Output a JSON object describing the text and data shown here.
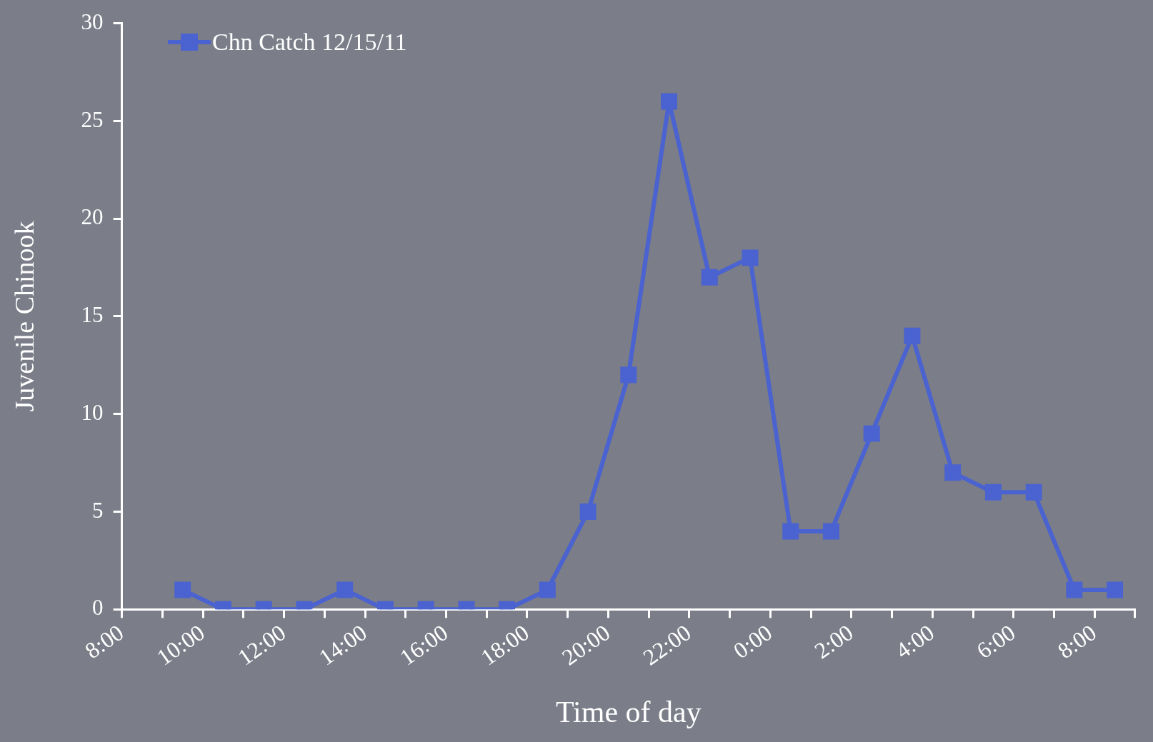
{
  "chart_data": {
    "type": "line",
    "xlabel": "Time of day",
    "ylabel": "Juvenile Chinook",
    "x": [
      "--12-15T09:30",
      "--12-15T10:30",
      "--12-15T11:30",
      "--12-15T12:30",
      "--12-15T13:30",
      "--12-15T14:30",
      "--12-15T15:30",
      "--12-15T16:30",
      "--12-15T17:30",
      "--12-15T18:30",
      "--12-15T19:30",
      "--12-15T20:30",
      "--12-15T21:30",
      "--12-15T22:30",
      "--12-15T23:30",
      "--12-16T00:30",
      "--12-16T01:30",
      "--12-16T02:30",
      "--12-16T03:30",
      "--12-16T04:30",
      "--12-16T05:30",
      "--12-16T06:30",
      "--12-16T07:30",
      "--12-16T08:30"
    ],
    "series": [
      {
        "name": "Chn Catch 12/15/11",
        "color": "#4a63d0",
        "values": [
          1,
          0,
          0,
          0,
          1,
          0,
          0,
          0,
          0,
          1,
          5,
          12,
          26,
          17,
          18,
          4,
          4,
          9,
          14,
          7,
          6,
          6,
          1,
          1
        ]
      }
    ],
    "xlim": [
      "--12-15T08:00",
      "--12-16T09:00"
    ],
    "xticks": [
      {
        "value": "--12-15T08:00",
        "label": "8:00"
      },
      {
        "value": "--12-15T09:00",
        "label": null
      },
      {
        "value": "--12-15T10:00",
        "label": "10:00"
      },
      {
        "value": "--12-15T11:00",
        "label": null
      },
      {
        "value": "--12-15T12:00",
        "label": "12:00"
      },
      {
        "value": "--12-15T13:00",
        "label": null
      },
      {
        "value": "--12-15T14:00",
        "label": "14:00"
      },
      {
        "value": "--12-15T15:00",
        "label": null
      },
      {
        "value": "--12-15T16:00",
        "label": "16:00"
      },
      {
        "value": "--12-15T17:00",
        "label": null
      },
      {
        "value": "--12-15T18:00",
        "label": "18:00"
      },
      {
        "value": "--12-15T19:00",
        "label": null
      },
      {
        "value": "--12-15T20:00",
        "label": "20:00"
      },
      {
        "value": "--12-15T21:00",
        "label": null
      },
      {
        "value": "--12-15T22:00",
        "label": "22:00"
      },
      {
        "value": "--12-15T23:00",
        "label": null
      },
      {
        "value": "--12-16T00:00",
        "label": "0:00"
      },
      {
        "value": "--12-16T01:00",
        "label": null
      },
      {
        "value": "--12-16T02:00",
        "label": "2:00"
      },
      {
        "value": "--12-16T03:00",
        "label": null
      },
      {
        "value": "--12-16T04:00",
        "label": "4:00"
      },
      {
        "value": "--12-16T05:00",
        "label": null
      },
      {
        "value": "--12-16T06:00",
        "label": "6:00"
      },
      {
        "value": "--12-16T07:00",
        "label": null
      },
      {
        "value": "--12-16T08:00",
        "label": "8:00"
      },
      {
        "value": "--12-16T09:00",
        "label": null
      }
    ],
    "ylim": [
      0,
      30
    ],
    "yticks": [
      0,
      5,
      10,
      15,
      20,
      25,
      30
    ],
    "grid": false,
    "legend": "top left",
    "marker": "square",
    "line_style": "solid"
  }
}
